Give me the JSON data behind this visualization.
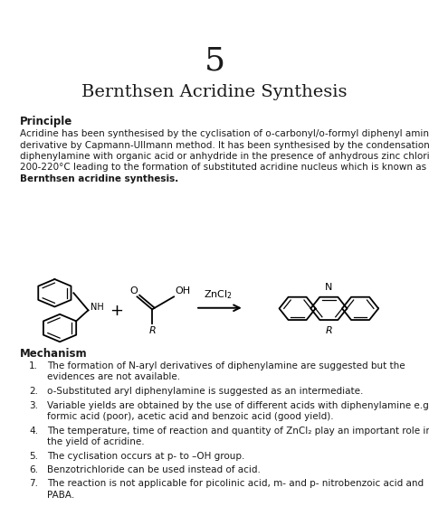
{
  "page_number": "5",
  "title": "Bernthsen Acridine Synthesis",
  "background_color": "#ffffff",
  "text_color": "#1a1a1a",
  "principle_heading": "Principle",
  "principle_text_lines": [
    "Acridine has been synthesised by the cyclisation of o-carbonyl/o-formyl diphenyl amine",
    "derivative by Capmann-Ullmann method. It has been synthesised by the condensation of",
    "diphenylamine with organic acid or anhydride in the presence of anhydrous zinc chloride at",
    "200-220°C leading to the formation of substituted acridine nucleus which is known as"
  ],
  "principle_bold_line": "Bernthsen acridine synthesis.",
  "mechanism_heading": "Mechanism",
  "mechanism_items": [
    "The formation of N-aryl derivatives of diphenylamine are suggested but the\nevidences are not available.",
    "o-Substituted aryl diphenylamine is suggested as an intermediate.",
    "Variable yields are obtained by the use of different acids with diphenylamine e.g.\nformic acid (poor), acetic acid and benzoic acid (good yield).",
    "The temperature, time of reaction and quantity of ZnCl₂ play an important role in\nthe yield of acridine.",
    "The cyclisation occurs at p- to –OH group.",
    "Benzotrichloride can be used instead of acid.",
    "The reaction is not applicable for picolinic acid, m- and p- nitrobenzoic acid and\nPABA."
  ]
}
